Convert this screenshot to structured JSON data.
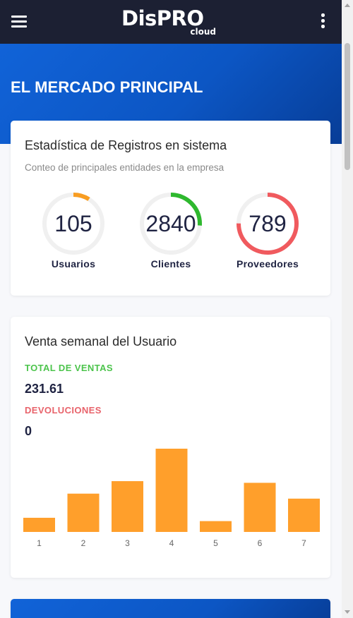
{
  "navbar": {
    "logo_main": "DisPRO",
    "logo_sub": "cloud",
    "menu_icon": "hamburger-menu-icon",
    "more_icon": "kebab-menu-icon",
    "background": "#1c2033"
  },
  "hero": {
    "title": "EL MERCADO PRINCIPAL",
    "background": "#0c56c4"
  },
  "stats_card": {
    "title": "Estadística de Registros en sistema",
    "subtitle": "Conteo de principales entidades en la empresa",
    "gauges": [
      {
        "value": "105",
        "label": "Usuarios",
        "fraction": 0.09,
        "color": "#f89d22"
      },
      {
        "value": "2840",
        "label": "Clientes",
        "fraction": 0.26,
        "color": "#2eb82e"
      },
      {
        "value": "789",
        "label": "Proveedores",
        "fraction": 0.75,
        "color": "#f05a5e"
      }
    ],
    "track_color": "#f0f0f0"
  },
  "sales_card": {
    "title": "Venta semanal del Usuario",
    "total_label": "TOTAL DE VENTAS",
    "total_value": "231.61",
    "returns_label": "DEVOLUCIONES",
    "returns_value": "0",
    "total_color": "#4cc44c",
    "returns_color": "#e8636b"
  },
  "chart_data": {
    "type": "bar",
    "categories": [
      "1",
      "2",
      "3",
      "4",
      "5",
      "6",
      "7"
    ],
    "values": [
      17,
      46,
      61,
      100,
      13,
      59,
      40
    ],
    "ylim": [
      0,
      100
    ],
    "bar_color": "#ff9f2b",
    "title": "",
    "xlabel": "",
    "ylabel": "",
    "grid": false,
    "legend": "none"
  }
}
